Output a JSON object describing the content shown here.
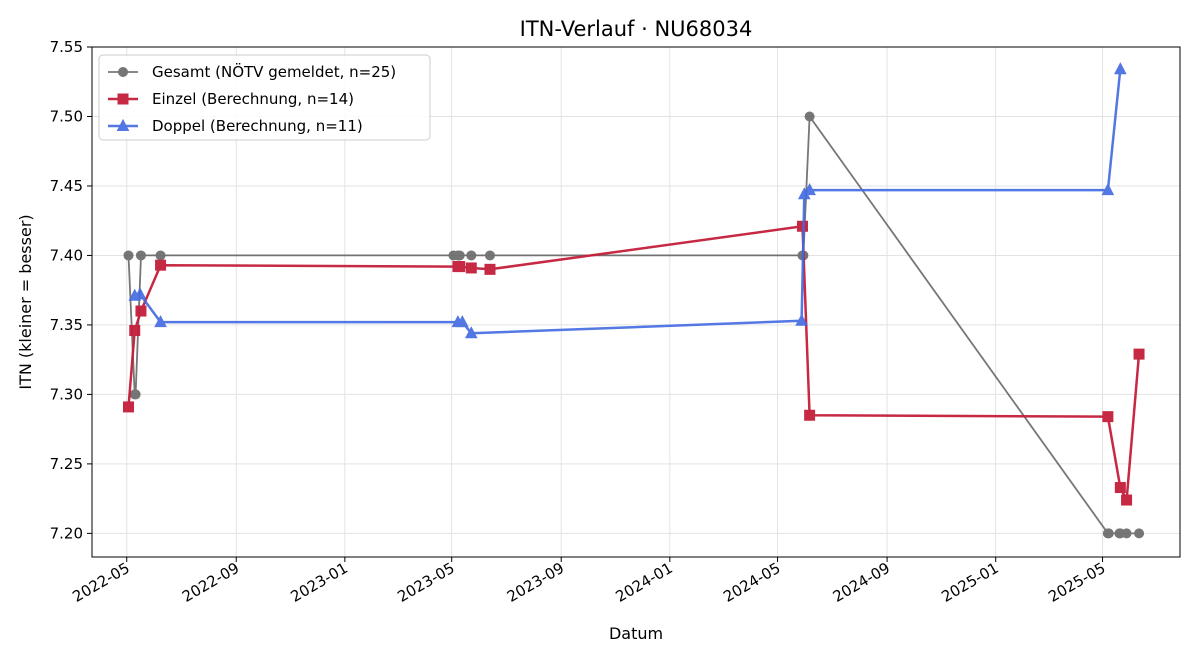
{
  "chart_data": {
    "type": "line",
    "title": "ITN-Verlauf · NU68034",
    "xlabel": "Datum",
    "ylabel": "ITN  (kleiner = besser)",
    "x_is_date": true,
    "xlim": [
      "2022-03-23",
      "2025-07-27"
    ],
    "ylim": [
      7.183,
      7.55
    ],
    "x_ticks": [
      "2022-05-01",
      "2022-09-01",
      "2023-01-01",
      "2023-05-01",
      "2023-09-01",
      "2024-01-01",
      "2024-05-01",
      "2024-09-01",
      "2025-01-01",
      "2025-05-01"
    ],
    "x_tick_labels": [
      "2022-05",
      "2022-09",
      "2023-01",
      "2023-05",
      "2023-09",
      "2024-01",
      "2024-05",
      "2024-09",
      "2025-01",
      "2025-05"
    ],
    "y_ticks": [
      7.2,
      7.25,
      7.3,
      7.35,
      7.4,
      7.45,
      7.5,
      7.55
    ],
    "y_tick_labels": [
      "7.20",
      "7.25",
      "7.30",
      "7.35",
      "7.40",
      "7.45",
      "7.50",
      "7.55"
    ],
    "grid": true,
    "legend_position": "top-left",
    "series": [
      {
        "name": "Gesamt (NÖTV gemeldet, n=25)",
        "color": "#555555",
        "marker": "circle",
        "points": [
          {
            "x": "2022-05-03",
            "y": 7.4
          },
          {
            "x": "2022-05-10",
            "y": 7.3
          },
          {
            "x": "2022-05-11",
            "y": 7.3
          },
          {
            "x": "2022-05-17",
            "y": 7.4
          },
          {
            "x": "2022-06-08",
            "y": 7.4
          },
          {
            "x": "2023-05-03",
            "y": 7.4
          },
          {
            "x": "2023-05-08",
            "y": 7.4
          },
          {
            "x": "2023-05-10",
            "y": 7.4
          },
          {
            "x": "2023-05-23",
            "y": 7.4
          },
          {
            "x": "2023-06-13",
            "y": 7.4
          },
          {
            "x": "2024-05-29",
            "y": 7.4
          },
          {
            "x": "2024-05-30",
            "y": 7.4
          },
          {
            "x": "2024-06-06",
            "y": 7.5
          },
          {
            "x": "2025-05-07",
            "y": 7.2
          },
          {
            "x": "2025-05-08",
            "y": 7.2
          },
          {
            "x": "2025-05-20",
            "y": 7.2
          },
          {
            "x": "2025-05-21",
            "y": 7.2
          },
          {
            "x": "2025-05-28",
            "y": 7.2
          },
          {
            "x": "2025-06-11",
            "y": 7.2
          }
        ]
      },
      {
        "name": "Einzel (Berechnung, n=14)",
        "color": "#c41e3a",
        "marker": "square",
        "points": [
          {
            "x": "2022-05-03",
            "y": 7.291
          },
          {
            "x": "2022-05-10",
            "y": 7.346
          },
          {
            "x": "2022-05-17",
            "y": 7.36
          },
          {
            "x": "2022-06-08",
            "y": 7.393
          },
          {
            "x": "2023-05-08",
            "y": 7.392
          },
          {
            "x": "2023-05-10",
            "y": 7.392
          },
          {
            "x": "2023-05-23",
            "y": 7.391
          },
          {
            "x": "2023-06-13",
            "y": 7.39
          },
          {
            "x": "2024-05-29",
            "y": 7.421
          },
          {
            "x": "2024-06-06",
            "y": 7.285
          },
          {
            "x": "2025-05-07",
            "y": 7.284
          },
          {
            "x": "2025-05-21",
            "y": 7.233
          },
          {
            "x": "2025-05-28",
            "y": 7.224
          },
          {
            "x": "2025-06-11",
            "y": 7.329
          }
        ]
      },
      {
        "name": "Doppel (Berechnung, n=11)",
        "color": "#4169e1",
        "marker": "triangle",
        "points": [
          {
            "x": "2022-05-10",
            "y": 7.371
          },
          {
            "x": "2022-05-16",
            "y": 7.372
          },
          {
            "x": "2022-06-08",
            "y": 7.352
          },
          {
            "x": "2023-05-08",
            "y": 7.352
          },
          {
            "x": "2023-05-13",
            "y": 7.352
          },
          {
            "x": "2023-05-23",
            "y": 7.344
          },
          {
            "x": "2024-05-28",
            "y": 7.353
          },
          {
            "x": "2024-05-31",
            "y": 7.444
          },
          {
            "x": "2024-06-06",
            "y": 7.447
          },
          {
            "x": "2025-05-07",
            "y": 7.447
          },
          {
            "x": "2025-05-21",
            "y": 7.534
          }
        ]
      }
    ]
  }
}
